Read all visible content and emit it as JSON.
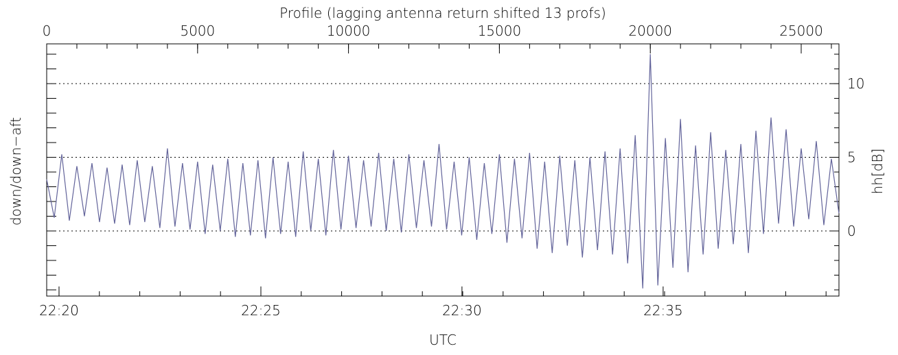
{
  "chart_data": {
    "type": "line",
    "title": "Profile (lagging antenna return shifted 13 profs)",
    "x_label": "UTC",
    "y_label": "down/down−aft",
    "y2_label": "hh[dB]",
    "xlim": [
      0,
      26251
    ],
    "ylim": [
      -4.42,
      12.7
    ],
    "xticks": [
      0,
      5000,
      10000,
      15000,
      20000,
      25000
    ],
    "x2ticks": [
      {
        "value": 409,
        "label": "22:20"
      },
      {
        "value": 7097,
        "label": "22:25"
      },
      {
        "value": 13760,
        "label": "22:30"
      },
      {
        "value": 20425,
        "label": "22:35"
      }
    ],
    "yticks": [
      0,
      5,
      10
    ],
    "grid": true,
    "series": [
      {
        "color": "#62639a",
        "x": [
          0,
          250,
          500,
          750,
          1000,
          1250,
          1500,
          1750,
          2000,
          2250,
          2500,
          2750,
          3000,
          3250,
          3500,
          3750,
          4000,
          4250,
          4500,
          4750,
          5000,
          5250,
          5500,
          5750,
          6000,
          6250,
          6500,
          6750,
          7000,
          7250,
          7500,
          7750,
          8000,
          8250,
          8500,
          8750,
          9000,
          9250,
          9500,
          9750,
          10000,
          10250,
          10500,
          10750,
          11000,
          11250,
          11500,
          11750,
          12000,
          12250,
          12500,
          12750,
          13000,
          13250,
          13500,
          13750,
          14000,
          14250,
          14500,
          14750,
          15000,
          15250,
          15500,
          15750,
          16000,
          16250,
          16500,
          16750,
          17000,
          17250,
          17500,
          17750,
          18000,
          18250,
          18500,
          18750,
          19000,
          19250,
          19500,
          19750,
          20000,
          20250,
          20500,
          20750,
          21000,
          21250,
          21500,
          21750,
          22000,
          22250,
          22500,
          22750,
          23000,
          23250,
          23500,
          23750,
          24000,
          24250,
          24500,
          24750,
          25000,
          25250,
          25500,
          25750,
          26000,
          26250
        ],
        "values": [
          3.5,
          0.9,
          5.2,
          0.7,
          4.4,
          1.0,
          4.6,
          0.6,
          4.3,
          0.5,
          4.5,
          0.4,
          4.8,
          0.6,
          4.4,
          0.2,
          5.6,
          0.3,
          4.6,
          0.1,
          4.7,
          -0.2,
          4.5,
          0.0,
          4.9,
          -0.4,
          4.6,
          -0.3,
          4.8,
          -0.5,
          5.0,
          -0.2,
          4.7,
          -0.4,
          5.4,
          0.0,
          4.9,
          -0.3,
          5.5,
          0.1,
          5.1,
          0.2,
          4.8,
          0.3,
          5.3,
          0.0,
          4.9,
          -0.1,
          5.2,
          0.2,
          4.8,
          0.3,
          5.9,
          0.1,
          4.7,
          -0.3,
          5.0,
          -0.6,
          4.6,
          -0.2,
          5.2,
          -0.8,
          4.9,
          -0.5,
          5.3,
          -1.2,
          4.7,
          -1.5,
          5.1,
          -1.0,
          4.8,
          -1.8,
          5.0,
          -1.3,
          5.4,
          -1.6,
          5.6,
          -2.2,
          6.5,
          -3.9,
          12.0,
          -3.7,
          6.3,
          -2.5,
          7.6,
          -2.8,
          5.8,
          -1.6,
          6.7,
          -1.2,
          5.5,
          -0.9,
          5.9,
          -1.5,
          6.8,
          -0.2,
          7.7,
          0.5,
          6.9,
          0.3,
          5.6,
          0.8,
          6.1,
          0.4,
          4.9,
          1.2
        ]
      }
    ]
  }
}
